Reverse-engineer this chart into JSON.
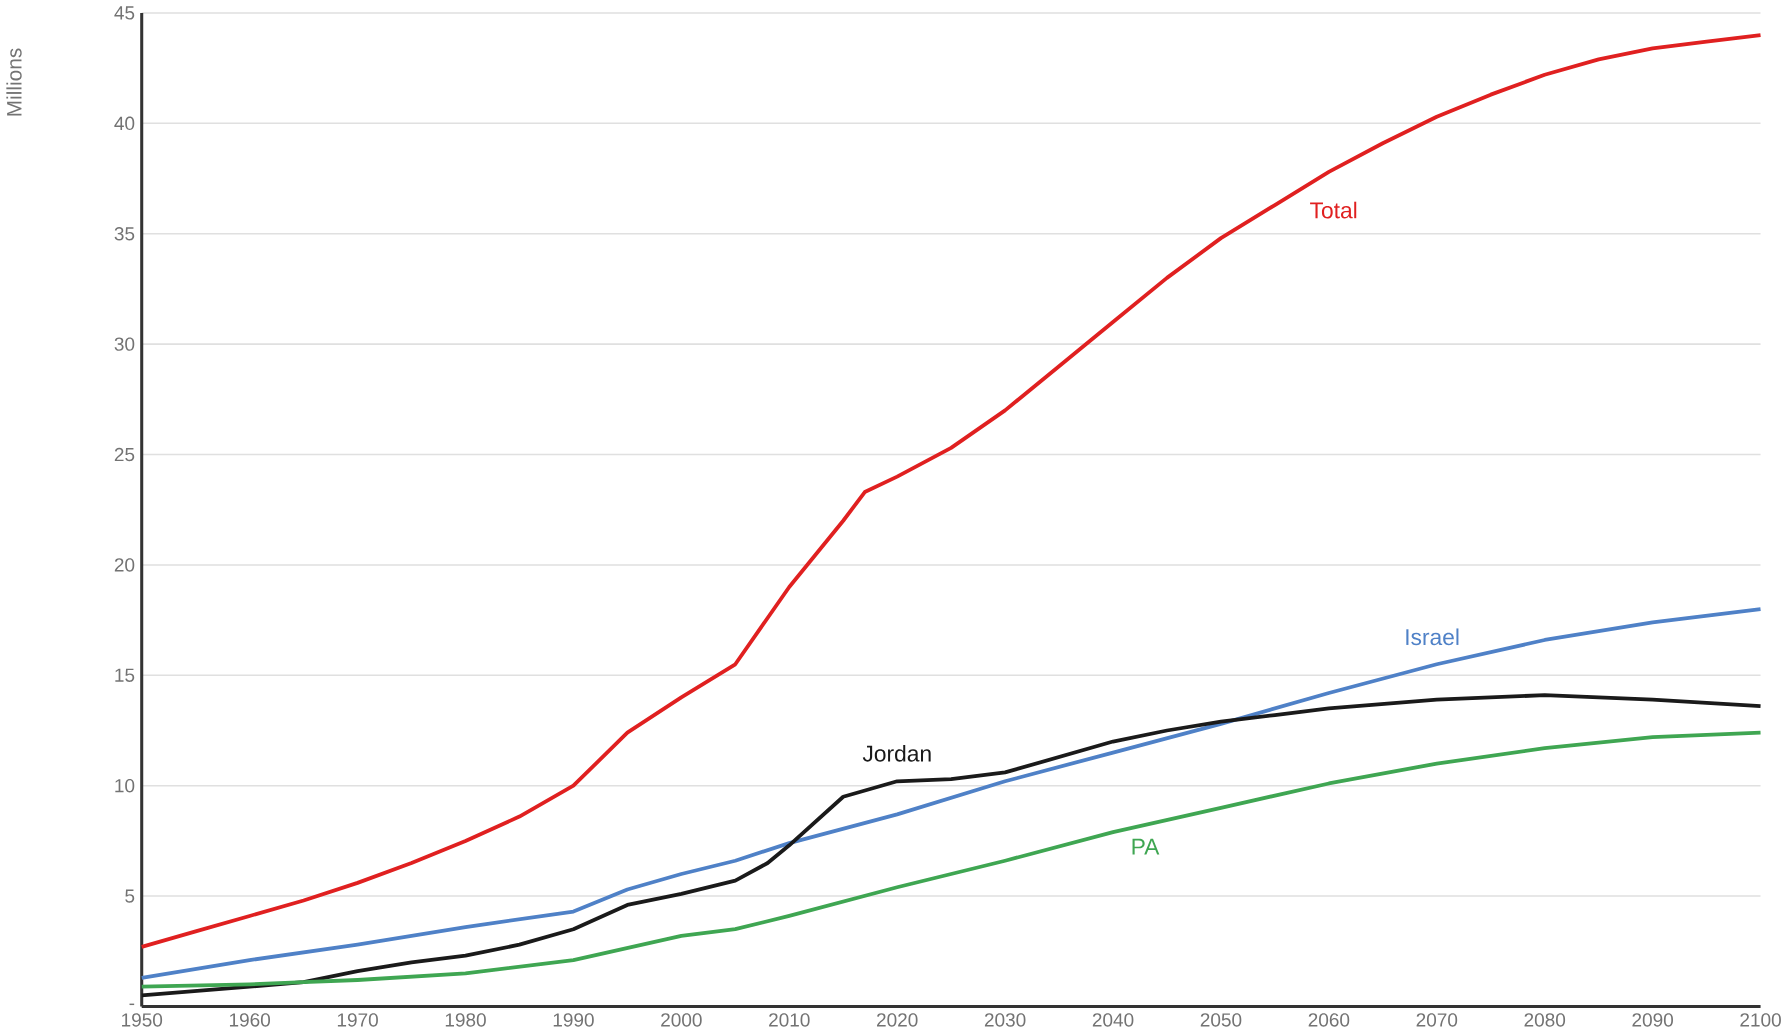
{
  "chart_data": {
    "type": "line",
    "ylabel": "Millions",
    "xlim": [
      1950,
      2100
    ],
    "ylim": [
      0,
      45
    ],
    "xticks": [
      1950,
      1960,
      1970,
      1980,
      1990,
      2000,
      2010,
      2020,
      2030,
      2040,
      2050,
      2060,
      2070,
      2080,
      2090,
      2100
    ],
    "yticks": [
      {
        "value": 0,
        "label": "-"
      },
      5,
      10,
      15,
      20,
      25,
      30,
      35,
      40,
      45
    ],
    "grid": "y",
    "legend": false,
    "marker": "none",
    "line_style": "solid",
    "series": [
      {
        "name": "Total",
        "color": "#e02020",
        "x": [
          1950,
          1955,
          1960,
          1965,
          1970,
          1975,
          1980,
          1985,
          1990,
          1995,
          2000,
          2005,
          2010,
          2015,
          2017,
          2020,
          2025,
          2030,
          2035,
          2040,
          2045,
          2050,
          2055,
          2060,
          2065,
          2070,
          2075,
          2080,
          2085,
          2090,
          2095,
          2100
        ],
        "values": [
          2.7,
          3.4,
          4.1,
          4.8,
          5.6,
          6.5,
          7.5,
          8.6,
          10.0,
          12.4,
          14.0,
          15.5,
          19.0,
          22.0,
          23.3,
          24.0,
          25.3,
          27.0,
          29.0,
          31.0,
          33.0,
          34.8,
          36.3,
          37.8,
          39.1,
          40.3,
          41.3,
          42.2,
          42.9,
          43.4,
          43.7,
          44.0
        ]
      },
      {
        "name": "Israel",
        "color": "#4f81c7",
        "x": [
          1950,
          1960,
          1970,
          1980,
          1990,
          1995,
          2000,
          2005,
          2010,
          2020,
          2030,
          2040,
          2050,
          2060,
          2070,
          2080,
          2090,
          2100
        ],
        "values": [
          1.3,
          2.1,
          2.8,
          3.6,
          4.3,
          5.3,
          6.0,
          6.6,
          7.4,
          8.7,
          10.2,
          11.5,
          12.8,
          14.2,
          15.5,
          16.6,
          17.4,
          18.0
        ]
      },
      {
        "name": "Jordan",
        "color": "#1a1a1a",
        "x": [
          1950,
          1955,
          1960,
          1965,
          1970,
          1975,
          1980,
          1985,
          1990,
          1995,
          2000,
          2005,
          2008,
          2010,
          2015,
          2020,
          2025,
          2030,
          2035,
          2040,
          2045,
          2050,
          2055,
          2060,
          2070,
          2080,
          2090,
          2100
        ],
        "values": [
          0.5,
          0.7,
          0.9,
          1.1,
          1.6,
          2.0,
          2.3,
          2.8,
          3.5,
          4.6,
          5.1,
          5.7,
          6.5,
          7.3,
          9.5,
          10.2,
          10.3,
          10.6,
          11.3,
          12.0,
          12.5,
          12.9,
          13.2,
          13.5,
          13.9,
          14.1,
          13.9,
          13.6
        ]
      },
      {
        "name": "PA",
        "color": "#3fa652",
        "x": [
          1950,
          1960,
          1965,
          1970,
          1980,
          1990,
          2000,
          2005,
          2010,
          2020,
          2030,
          2040,
          2050,
          2060,
          2070,
          2080,
          2090,
          2100
        ],
        "values": [
          0.9,
          1.0,
          1.1,
          1.2,
          1.5,
          2.1,
          3.2,
          3.5,
          4.1,
          5.4,
          6.6,
          7.9,
          9.0,
          10.1,
          11.0,
          11.7,
          12.2,
          12.4
        ]
      }
    ]
  }
}
